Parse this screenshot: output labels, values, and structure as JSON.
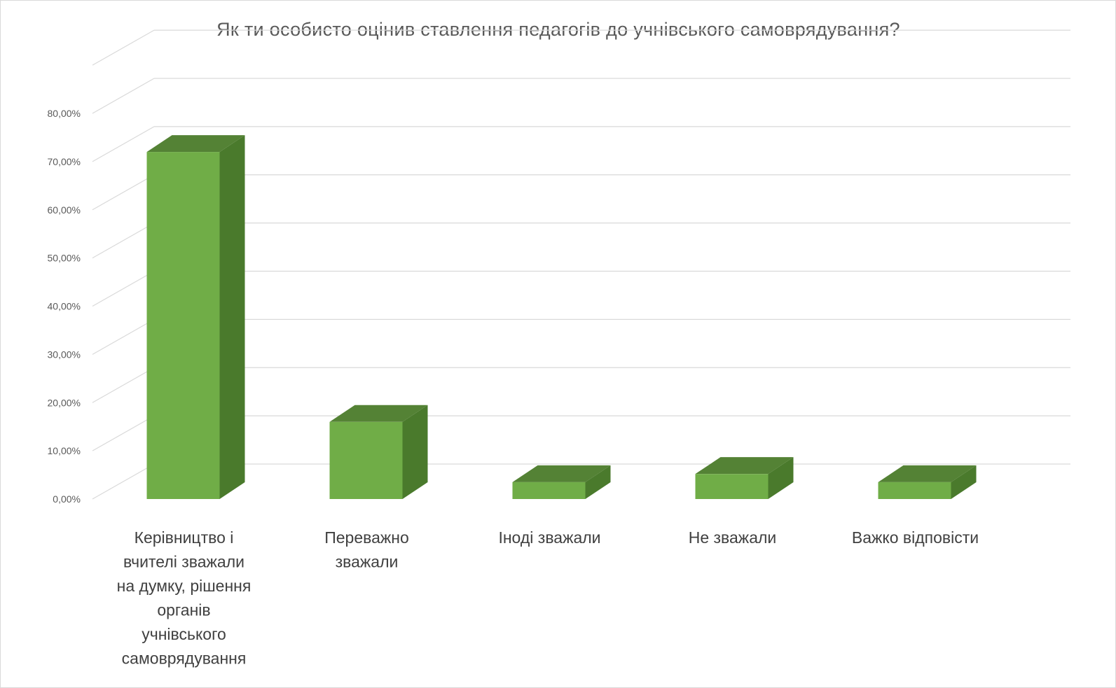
{
  "chart_data": {
    "type": "bar",
    "style": "3d-column",
    "title": "Як ти особисто оцінив ставлення педагогів до учнівського самоврядування?",
    "xlabel": "",
    "ylabel": "",
    "ylim": [
      0,
      0.8
    ],
    "yticks": [
      0,
      0.1,
      0.2,
      0.3,
      0.4,
      0.5,
      0.6,
      0.7,
      0.8
    ],
    "ytick_labels": [
      "0,00%",
      "10,00%",
      "20,00%",
      "30,00%",
      "40,00%",
      "50,00%",
      "60,00%",
      "70,00%",
      "80,00%"
    ],
    "grid": true,
    "legend": "none",
    "categories": [
      [
        "Керівництво  і",
        "вчителі зважали",
        "на думку, рішення",
        "органів",
        "учнівського",
        "самоврядування"
      ],
      [
        "Переважно",
        "зважали"
      ],
      [
        "Іноді зважали"
      ],
      [
        "Не зважали"
      ],
      [
        "Важко відповісти"
      ]
    ],
    "values": [
      0.72,
      0.16,
      0.035,
      0.052,
      0.035
    ],
    "colors": {
      "front": "#70ad47",
      "side": "#4a7a2c",
      "top": "#548235",
      "grid": "#d9d9d9",
      "text": "#595959"
    }
  }
}
